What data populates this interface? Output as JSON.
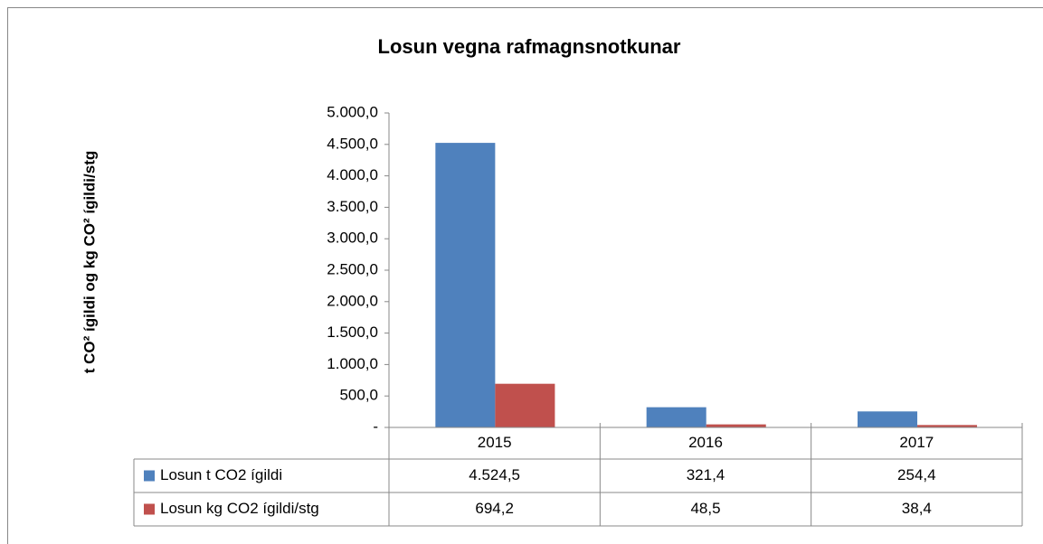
{
  "chart_data": {
    "type": "bar",
    "title": "Losun vegna rafmagnsnotkunar",
    "y_label": "t CO² ígildi og kg CO² ígildi/stg",
    "categories": [
      "2015",
      "2016",
      "2017"
    ],
    "series": [
      {
        "name": "Losun t CO2 ígildi",
        "color": "#4f81bd",
        "values": [
          4524.5,
          321.4,
          254.4
        ],
        "value_labels": [
          "4.524,5",
          "321,4",
          "254,4"
        ]
      },
      {
        "name": "Losun kg CO2 ígildi/stg",
        "color": "#c0504d",
        "values": [
          694.2,
          48.5,
          38.4
        ],
        "value_labels": [
          "694,2",
          "48,5",
          "38,4"
        ]
      }
    ],
    "ylim": [
      0,
      5000
    ],
    "yticks": [
      {
        "value": 0,
        "label": "-"
      },
      {
        "value": 500,
        "label": "500,0"
      },
      {
        "value": 1000,
        "label": "1.000,0"
      },
      {
        "value": 1500,
        "label": "1.500,0"
      },
      {
        "value": 2000,
        "label": "2.000,0"
      },
      {
        "value": 2500,
        "label": "2.500,0"
      },
      {
        "value": 3000,
        "label": "3.000,0"
      },
      {
        "value": 3500,
        "label": "3.500,0"
      },
      {
        "value": 4000,
        "label": "4.000,0"
      },
      {
        "value": 4500,
        "label": "4.500,0"
      },
      {
        "value": 5000,
        "label": "5.000,0"
      }
    ],
    "grid": false
  }
}
